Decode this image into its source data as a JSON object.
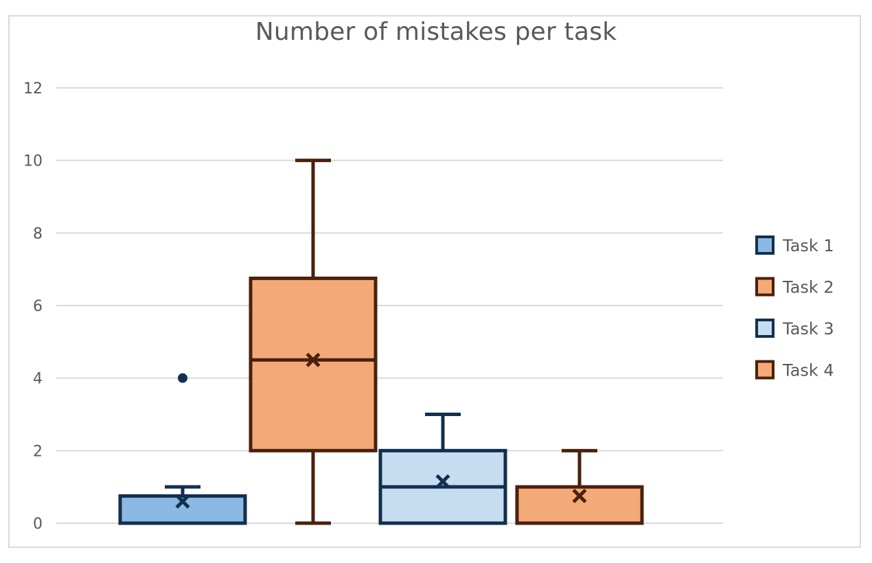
{
  "chart_data": {
    "type": "box",
    "title": "Number of mistakes per task",
    "xlabel": "",
    "ylabel": "",
    "ylim": [
      0,
      12
    ],
    "yticks": [
      0,
      2,
      4,
      6,
      8,
      10,
      12
    ],
    "grid": true,
    "legend_position": "right",
    "series": [
      {
        "name": "Task 1",
        "min": 0,
        "q1": 0,
        "median": 0,
        "q3": 0.75,
        "max": 1,
        "mean": 0.6,
        "outliers": [
          4
        ],
        "fill": "#8cb8e4",
        "stroke": "#12304d"
      },
      {
        "name": "Task 2",
        "min": 0,
        "q1": 2,
        "median": 4.5,
        "q3": 6.75,
        "max": 10,
        "mean": 4.5,
        "outliers": [],
        "fill": "#f4aa78",
        "stroke": "#4a210d"
      },
      {
        "name": "Task 3",
        "min": 0,
        "q1": 0,
        "median": 1,
        "q3": 2,
        "max": 3,
        "mean": 1.15,
        "outliers": [],
        "fill": "#c6dcf1",
        "stroke": "#12304d"
      },
      {
        "name": "Task 4",
        "min": 0,
        "q1": 0,
        "median": 0,
        "q3": 1,
        "max": 2,
        "mean": 0.75,
        "outliers": [],
        "fill": "#f4aa78",
        "stroke": "#4a210d"
      }
    ]
  }
}
